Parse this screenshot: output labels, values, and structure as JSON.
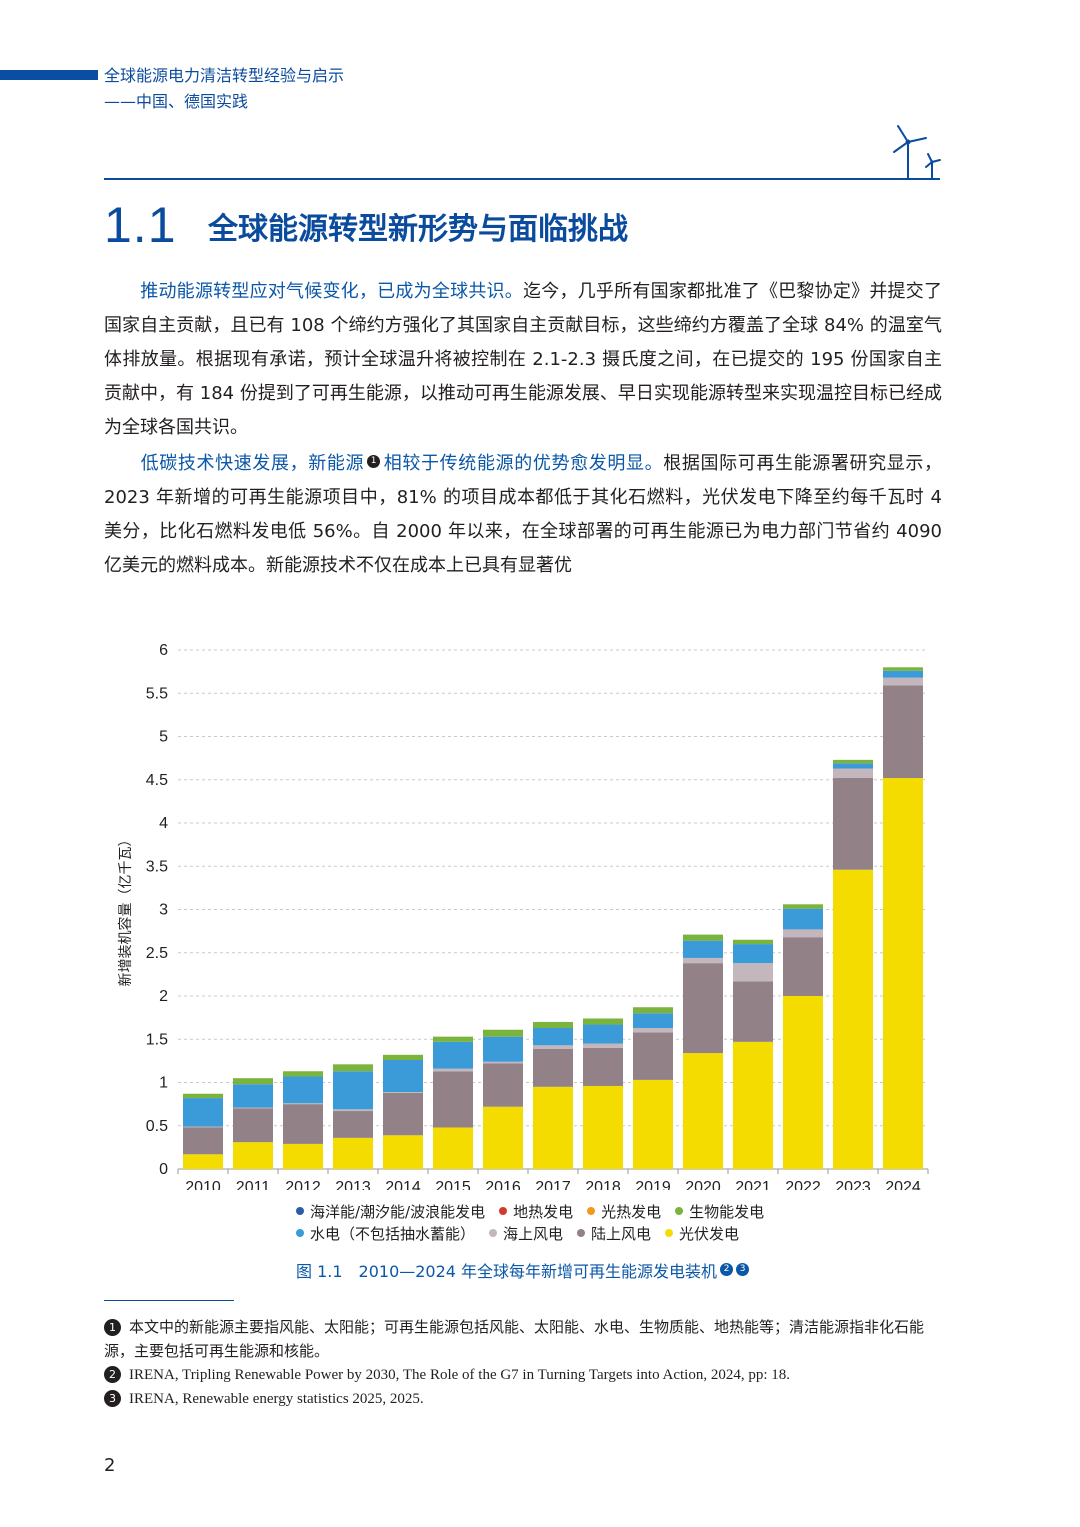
{
  "header": {
    "title": "全球能源电力清洁转型经验与启示",
    "subtitle": "——中国、德国实践"
  },
  "section": {
    "number": "1.1",
    "title": "全球能源转型新形势与面临挑战"
  },
  "paragraphs": [
    {
      "lead": "推动能源转型应对气候变化，已成为全球共识。",
      "body": "迄今，几乎所有国家都批准了《巴黎协定》并提交了国家自主贡献，且已有 108 个缔约方强化了其国家自主贡献目标，这些缔约方覆盖了全球 84% 的温室气体排放量。根据现有承诺，预计全球温升将被控制在 2.1-2.3 摄氏度之间，在已提交的 195 份国家自主贡献中，有 184 份提到了可再生能源，以推动可再生能源发展、早日实现能源转型来实现温控目标已经成为全球各国共识。"
    },
    {
      "lead_a": "低碳技术快速发展，新能源",
      "mark": "1",
      "lead_b": "相较于传统能源的优势愈发明显。",
      "body": "根据国际可再生能源署研究显示，2023 年新增的可再生能源项目中，81% 的项目成本都低于其化石燃料，光伏发电下降至约每千瓦时 4 美分，比化石燃料发电低 56%。自 2000 年以来，在全球部署的可再生能源已为电力部门节省约 4090 亿美元的燃料成本。新能源技术不仅在成本上已具有显著优"
    }
  ],
  "chart_data": {
    "type": "bar",
    "stacked": true,
    "ylabel": "新增装机容量（亿千瓦）",
    "ylim": [
      0,
      6
    ],
    "yticks": [
      "0",
      "0.5",
      "1",
      "1.5",
      "2",
      "2.5",
      "3",
      "3.5",
      "4",
      "4.5",
      "5",
      "5.5",
      "6"
    ],
    "categories": [
      "2010",
      "2011",
      "2012",
      "2013",
      "2014",
      "2015",
      "2016",
      "2017",
      "2018",
      "2019",
      "2020",
      "2021",
      "2022",
      "2023",
      "2024"
    ],
    "series": [
      {
        "name": "光伏发电",
        "color": "#f5dc00",
        "values": [
          0.17,
          0.31,
          0.29,
          0.36,
          0.39,
          0.48,
          0.72,
          0.95,
          0.96,
          1.03,
          1.34,
          1.47,
          2.0,
          3.46,
          4.52
        ]
      },
      {
        "name": "陆上风电",
        "color": "#928186",
        "values": [
          0.31,
          0.39,
          0.46,
          0.31,
          0.49,
          0.65,
          0.5,
          0.44,
          0.44,
          0.55,
          1.04,
          0.7,
          0.68,
          1.06,
          1.07
        ]
      },
      {
        "name": "海上风电",
        "color": "#c3b6bc",
        "values": [
          0.01,
          0.01,
          0.01,
          0.02,
          0.01,
          0.03,
          0.02,
          0.04,
          0.05,
          0.05,
          0.06,
          0.21,
          0.09,
          0.11,
          0.09
        ]
      },
      {
        "name": "水电（不包括抽水蓄能）",
        "color": "#3b9ad8",
        "values": [
          0.33,
          0.27,
          0.31,
          0.44,
          0.37,
          0.31,
          0.29,
          0.2,
          0.22,
          0.17,
          0.2,
          0.22,
          0.24,
          0.06,
          0.08
        ]
      },
      {
        "name": "生物能发电",
        "color": "#7ab43c",
        "values": [
          0.05,
          0.07,
          0.06,
          0.08,
          0.06,
          0.06,
          0.08,
          0.07,
          0.07,
          0.07,
          0.07,
          0.05,
          0.05,
          0.04,
          0.04
        ]
      },
      {
        "name": "光热发电",
        "color": "#f39a1c",
        "values": [
          0.0,
          0.0,
          0.0,
          0.0,
          0.0,
          0.0,
          0.0,
          0.0,
          0.0,
          0.0,
          0.0,
          0.0,
          0.0,
          0.0,
          0.0
        ]
      },
      {
        "name": "地热发电",
        "color": "#d33a2c",
        "values": [
          0.0,
          0.0,
          0.0,
          0.0,
          0.0,
          0.0,
          0.0,
          0.0,
          0.0,
          0.0,
          0.0,
          0.0,
          0.0,
          0.0,
          0.0
        ]
      },
      {
        "name": "海洋能/潮汐能/波浪能发电",
        "color": "#2a5ca8",
        "values": [
          0.0,
          0.0,
          0.0,
          0.0,
          0.0,
          0.0,
          0.0,
          0.0,
          0.0,
          0.0,
          0.0,
          0.0,
          0.0,
          0.0,
          0.0
        ]
      }
    ],
    "legend_order": [
      "海洋能/潮汐能/波浪能发电",
      "地热发电",
      "光热发电",
      "生物能发电",
      "水电（不包括抽水蓄能）",
      "海上风电",
      "陆上风电",
      "光伏发电"
    ],
    "legend_placement": "bottom",
    "grid": "horizontal dashed"
  },
  "caption": {
    "text": "图 1.1　2010—2024 年全球每年新增可再生能源发电装机",
    "marks": [
      "2",
      "3"
    ]
  },
  "footnotes": [
    {
      "mark": "1",
      "text": "本文中的新能源主要指风能、太阳能；可再生能源包括风能、太阳能、水电、生物质能、地热能等；清洁能源指非化石能源，主要包括可再生能源和核能。"
    },
    {
      "mark": "2",
      "text": "IRENA, Tripling Renewable Power by 2030, The Role of the G7 in Turning Targets into Action, 2024, pp: 18."
    },
    {
      "mark": "3",
      "text": "IRENA, Renewable energy statistics 2025, 2025."
    }
  ],
  "page_number": "2"
}
